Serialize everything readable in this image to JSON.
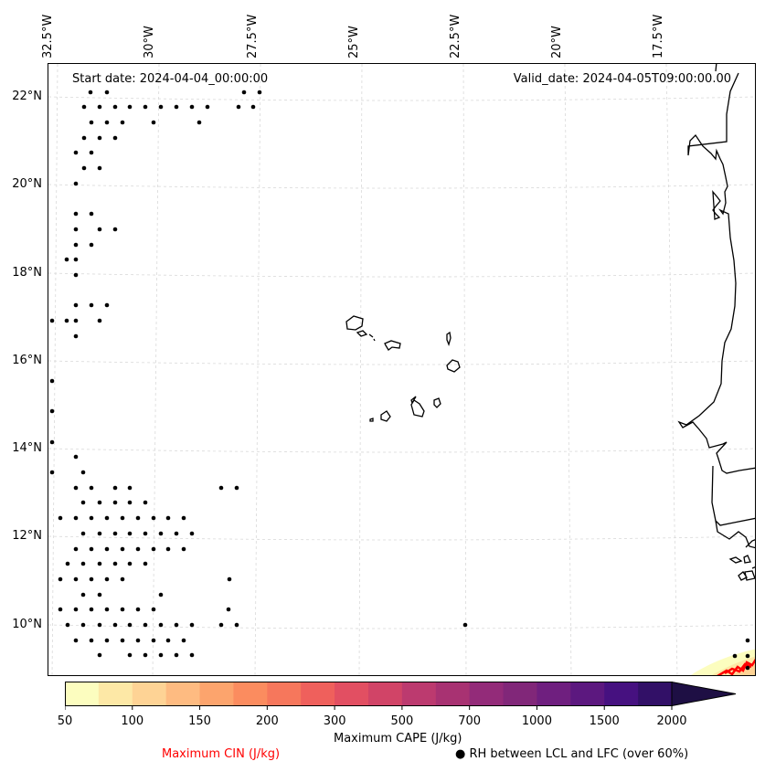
{
  "map": {
    "title_left": "Start date: 2024-04-04_00:00:00",
    "title_right": "Valid_date: 2024-04-05T09:00:00.00",
    "lon_labels": [
      "32.5°W",
      "30°W",
      "27.5°W",
      "25°W",
      "22.5°W",
      "20°W",
      "17.5°W"
    ],
    "lat_labels": [
      "22°N",
      "20°N",
      "18°N",
      "16°N",
      "14°N",
      "12°N",
      "10°N"
    ],
    "extent": {
      "lon_min": -32.6,
      "lon_max": -15.8,
      "lat_min": 8.9,
      "lat_max": 22.8
    },
    "coastline_color": "#000000",
    "gridline_color": "#d9d9d9",
    "rh_dot_color": "#000000",
    "cin_contour_color": "#ff0000"
  },
  "colorbar": {
    "label": "Maximum CAPE (J/kg)",
    "ticks": [
      "50",
      "100",
      "150",
      "200",
      "300",
      "500",
      "700",
      "1000",
      "1500",
      "2000"
    ],
    "levels": [
      50,
      75,
      100,
      125,
      150,
      175,
      200,
      250,
      300,
      400,
      500,
      600,
      700,
      800,
      1000,
      1250,
      1500,
      1750,
      2000
    ],
    "colors": [
      "#fcfdbf",
      "#fde8a6",
      "#fed395",
      "#febb81",
      "#fca46d",
      "#fb8c5f",
      "#f6775c",
      "#ef605c",
      "#e24f62",
      "#d14467",
      "#bc3a6f",
      "#a83272",
      "#932b79",
      "#812779",
      "#6f1f7f",
      "#5c187f",
      "#461180",
      "#321067",
      "#1e0f44"
    ],
    "extend": "max"
  },
  "legend": {
    "cin_label": "Maximum CIN (J/kg)",
    "cin_color": "#ff0000",
    "rh_marker": "●",
    "rh_label": "RH between LCL and LFC (over 60%)"
  }
}
